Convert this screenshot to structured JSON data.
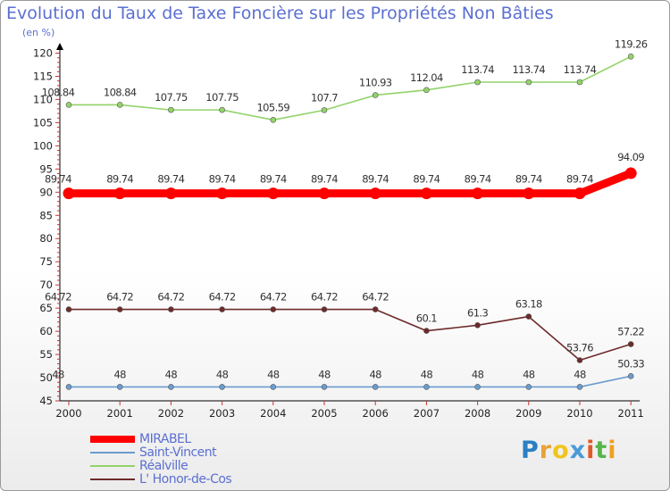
{
  "chart_data": {
    "type": "line",
    "title": "Evolution du Taux de Taxe Foncière sur les Propriétés Non Bâties",
    "subtitle": "(en %)",
    "xlabel": "",
    "ylabel": "",
    "categories": [
      "2000",
      "2001",
      "2002",
      "2003",
      "2004",
      "2005",
      "2006",
      "2007",
      "2008",
      "2009",
      "2010",
      "2011"
    ],
    "ylim": [
      45,
      120
    ],
    "yticks": [
      45,
      50,
      55,
      60,
      65,
      70,
      75,
      80,
      85,
      90,
      95,
      100,
      105,
      110,
      115,
      120
    ],
    "grid": false,
    "legend_position": "bottom-left",
    "series": [
      {
        "name": "MIRABEL",
        "color": "#ff0000",
        "values": [
          89.74,
          89.74,
          89.74,
          89.74,
          89.74,
          89.74,
          89.74,
          89.74,
          89.74,
          89.74,
          89.74,
          94.09
        ],
        "labels": [
          "89.74",
          "89.74",
          "89.74",
          "89.74",
          "89.74",
          "89.74",
          "89.74",
          "89.74",
          "89.74",
          "89.74",
          "89.74",
          "94.09"
        ]
      },
      {
        "name": "Saint-Vincent",
        "color": "#6b9ccf",
        "values": [
          48,
          48,
          48,
          48,
          48,
          48,
          48,
          48,
          48,
          48,
          48,
          50.33
        ],
        "labels": [
          "48",
          "48",
          "48",
          "48",
          "48",
          "48",
          "48",
          "48",
          "48",
          "48",
          "48",
          "50.33"
        ]
      },
      {
        "name": "Réalville",
        "color": "#92d36a",
        "values": [
          108.84,
          108.84,
          107.75,
          107.75,
          105.59,
          107.7,
          110.93,
          112.04,
          113.74,
          113.74,
          113.74,
          119.26
        ],
        "labels": [
          "108.84",
          "108.84",
          "107.75",
          "107.75",
          "105.59",
          "107.7",
          "110.93",
          "112.04",
          "113.74",
          "113.74",
          "113.74",
          "119.26"
        ]
      },
      {
        "name": "L' Honor-de-Cos",
        "color": "#6e2a2a",
        "values": [
          64.72,
          64.72,
          64.72,
          64.72,
          64.72,
          64.72,
          64.72,
          60.1,
          61.3,
          63.18,
          53.76,
          57.22
        ],
        "labels": [
          "64.72",
          "64.72",
          "64.72",
          "64.72",
          "64.72",
          "64.72",
          "64.72",
          "60.1",
          "61.3",
          "63.18",
          "53.76",
          "57.22"
        ]
      }
    ]
  },
  "logo": {
    "letters": [
      "P",
      "r",
      "o",
      "x",
      "i",
      "t",
      "i"
    ],
    "colors": [
      "#2b7fc4",
      "#e8a23a",
      "#f0c41c",
      "#4a9ad8",
      "#e05a2a",
      "#55b54a",
      "#f0a020"
    ]
  }
}
